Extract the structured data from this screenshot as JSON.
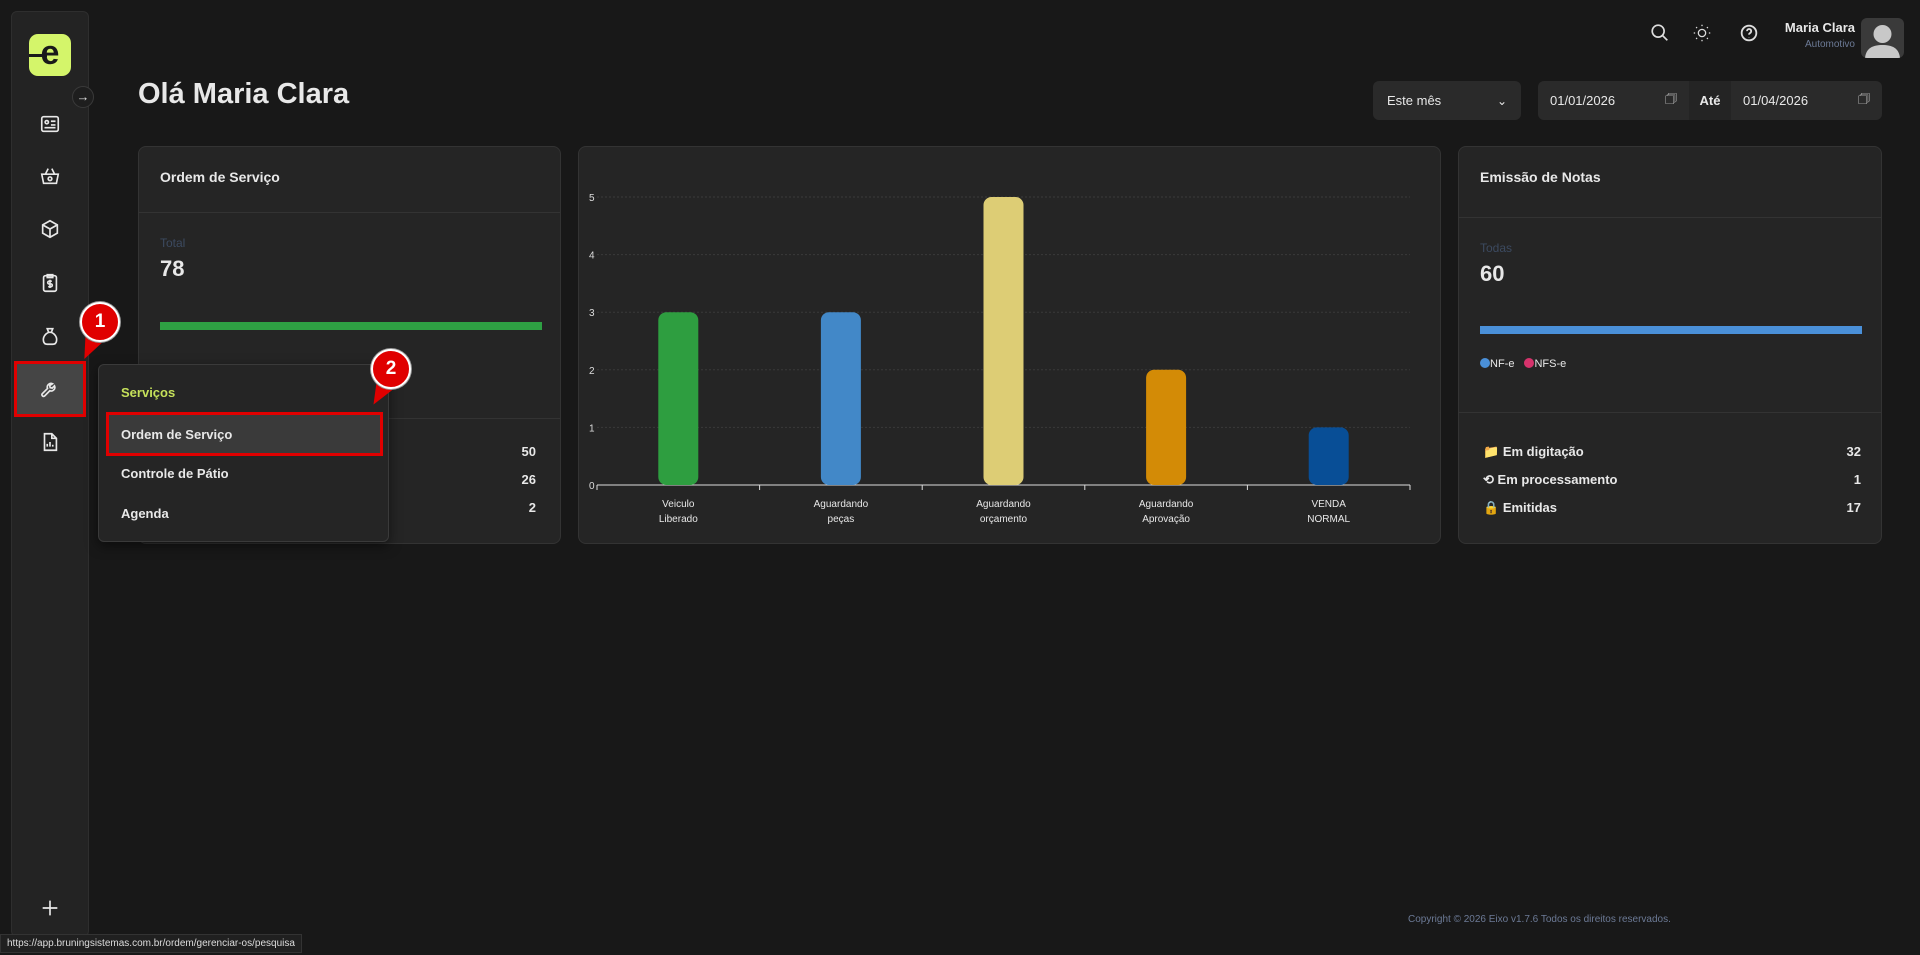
{
  "logo": "e",
  "header": {
    "greeting": "Olá Maria Clara",
    "user_name": "Maria Clara",
    "user_role": "Automotivo"
  },
  "filters": {
    "period": "Este mês",
    "date_from": "01/01/2026",
    "until_label": "Até",
    "date_to": "01/04/2026"
  },
  "card_os": {
    "title": "Ordem de Serviço",
    "total_label": "Total",
    "total": "78",
    "progress": 1.0,
    "rows": [
      "50",
      "26",
      "2"
    ],
    "color": "#2ea043"
  },
  "card_notas": {
    "title": "Emissão de Notas",
    "total_label": "Todas",
    "total": "60",
    "progress": 1.0,
    "legend": [
      {
        "label": "NF-e",
        "color": "#4a90d9"
      },
      {
        "label": "NFS-e",
        "color": "#d6336c"
      }
    ],
    "rows": [
      {
        "icon": "folder-icon",
        "label": "Em digitação",
        "value": "32"
      },
      {
        "icon": "history-icon",
        "label": "Em processamento",
        "value": "1"
      },
      {
        "icon": "lock-icon",
        "label": "Emitidas",
        "value": "17"
      }
    ]
  },
  "menu": {
    "heading": "Serviços",
    "items": [
      "Ordem de Serviço",
      "Controle de Pátio",
      "Agenda"
    ]
  },
  "badges": [
    "1",
    "2"
  ],
  "chart_data": {
    "type": "bar",
    "categories": [
      [
        "Veiculo",
        "Liberado"
      ],
      [
        "Aguardando",
        "peças"
      ],
      [
        "Aguardando",
        "orçamento"
      ],
      [
        "Aguardando",
        "Aprovação"
      ],
      [
        "VENDA",
        "NORMAL"
      ]
    ],
    "values": [
      3,
      3,
      5,
      2,
      1
    ],
    "colors": [
      "#2e9e40",
      "#4288c8",
      "#ddcd75",
      "#d38b06",
      "#084e96"
    ],
    "ylim": [
      0,
      5
    ],
    "yticks": [
      "0",
      "1",
      "2",
      "3",
      "4",
      "5"
    ],
    "title": "",
    "xlabel": "",
    "ylabel": ""
  },
  "footer": {
    "copyright": "Copyright © 2026 Eixo v1.7.6 Todos os direitos reservados."
  },
  "statusbar": {
    "url": "https://app.bruningsistemas.com.br/ordem/gerenciar-os/pesquisa"
  }
}
